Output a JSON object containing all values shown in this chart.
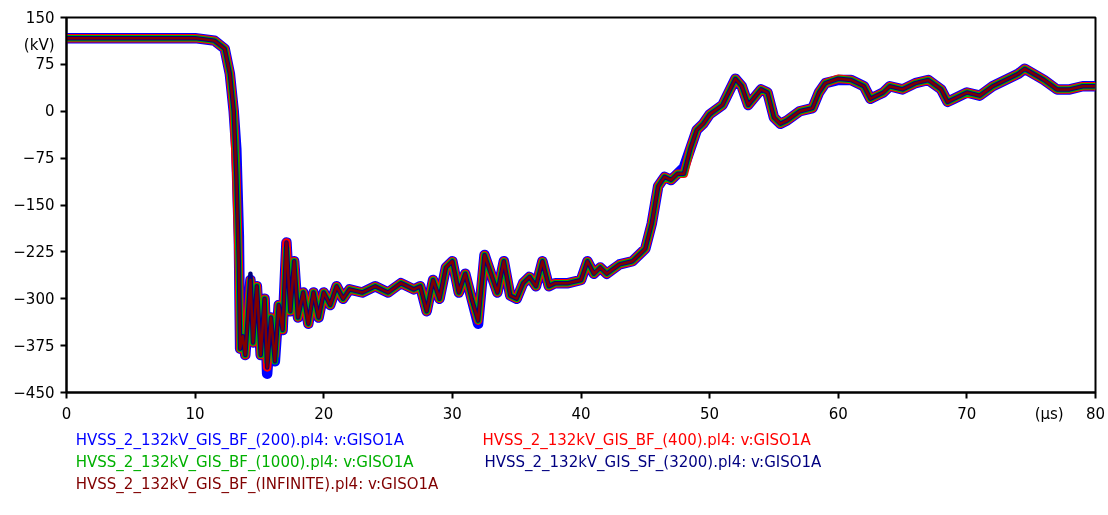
{
  "chart_data": {
    "type": "line",
    "xlabel": "(μs)",
    "ylabel": "(kV)",
    "xlim": [
      0,
      80
    ],
    "ylim": [
      -450,
      150
    ],
    "xticks": [
      0,
      10,
      20,
      30,
      40,
      50,
      60,
      70,
      80
    ],
    "yticks": [
      150,
      75,
      0,
      -75,
      -150,
      -225,
      -300,
      -375,
      -450
    ],
    "grid": false,
    "legend": "bottom",
    "line_style": "solid",
    "marker": "none",
    "x": [
      0,
      10,
      11.5,
      12.3,
      12.7,
      13,
      13.2,
      13.4,
      13.5,
      13.7,
      13.9,
      14.1,
      14.3,
      14.5,
      14.8,
      15.1,
      15.4,
      15.6,
      15.9,
      16.2,
      16.5,
      16.8,
      17.1,
      17.4,
      17.7,
      18,
      18.4,
      18.8,
      19.2,
      19.6,
      20,
      20.5,
      21,
      21.5,
      22,
      23,
      24,
      25,
      26,
      27,
      27.5,
      28,
      28.5,
      29,
      29.5,
      30,
      30.5,
      31,
      31.5,
      32,
      32.5,
      33,
      33.5,
      34,
      34.5,
      35,
      35.5,
      36,
      36.5,
      37,
      37.5,
      38,
      39,
      40,
      40.5,
      41,
      41.5,
      42,
      43,
      44,
      45,
      45.5,
      46,
      46.5,
      47,
      47.5,
      48,
      48.5,
      49,
      49.5,
      50,
      51,
      52,
      52.5,
      53,
      54,
      54.5,
      55,
      55.5,
      56,
      57,
      58,
      58.5,
      59,
      60,
      61,
      62,
      62.5,
      63,
      63.5,
      64,
      65,
      66,
      67,
      68,
      68.5,
      69,
      70,
      71,
      72,
      73,
      74,
      74.5,
      75,
      76,
      77,
      78,
      79,
      80
    ],
    "series": [
      {
        "name": "HVSS_2_132kV_GIS_BF_(200).pl4: v:GISO1A",
        "color": "#0000ff",
        "values": [
          117,
          117,
          113,
          100,
          60,
          0,
          -60,
          -200,
          -380,
          -360,
          -390,
          -330,
          -270,
          -370,
          -280,
          -390,
          -300,
          -420,
          -330,
          -400,
          -310,
          -350,
          -210,
          -320,
          -240,
          -330,
          -290,
          -340,
          -290,
          -330,
          -290,
          -310,
          -280,
          -300,
          -285,
          -290,
          -280,
          -290,
          -275,
          -285,
          -280,
          -320,
          -270,
          -300,
          -250,
          -240,
          -290,
          -260,
          -300,
          -340,
          -230,
          -260,
          -290,
          -240,
          -295,
          -300,
          -275,
          -265,
          -280,
          -240,
          -280,
          -275,
          -275,
          -270,
          -240,
          -260,
          -250,
          -260,
          -245,
          -240,
          -220,
          -180,
          -120,
          -105,
          -110,
          -100,
          -90,
          -60,
          -30,
          -20,
          -5,
          10,
          52,
          40,
          10,
          35,
          30,
          -10,
          -20,
          -15,
          0,
          5,
          30,
          45,
          50,
          50,
          40,
          20,
          25,
          30,
          40,
          35,
          45,
          50,
          35,
          15,
          20,
          30,
          25,
          40,
          50,
          60,
          68,
          62,
          50,
          35,
          35,
          40,
          40
        ]
      },
      {
        "name": "HVSS_2_132kV_GIS_BF_(400).pl4: v:GISO1A",
        "color": "#ff0000",
        "values": [
          117,
          117,
          113,
          100,
          60,
          0,
          -100,
          -250,
          -380,
          -360,
          -390,
          -330,
          -270,
          -370,
          -280,
          -390,
          -300,
          -410,
          -330,
          -390,
          -310,
          -350,
          -210,
          -320,
          -240,
          -330,
          -290,
          -340,
          -290,
          -330,
          -290,
          -310,
          -280,
          -300,
          -285,
          -290,
          -280,
          -290,
          -275,
          -285,
          -280,
          -320,
          -270,
          -300,
          -250,
          -240,
          -290,
          -260,
          -300,
          -335,
          -230,
          -260,
          -290,
          -240,
          -295,
          -300,
          -275,
          -265,
          -280,
          -240,
          -280,
          -275,
          -275,
          -270,
          -240,
          -260,
          -250,
          -260,
          -245,
          -240,
          -220,
          -180,
          -120,
          -105,
          -110,
          -100,
          -100,
          -60,
          -30,
          -20,
          -5,
          10,
          52,
          40,
          10,
          35,
          30,
          -10,
          -20,
          -15,
          0,
          5,
          30,
          45,
          52,
          50,
          40,
          20,
          25,
          30,
          40,
          35,
          45,
          50,
          35,
          15,
          20,
          30,
          25,
          40,
          50,
          60,
          68,
          62,
          50,
          35,
          35,
          40,
          40
        ]
      },
      {
        "name": "HVSS_2_132kV_GIS_BF_(1000).pl4: v:GISO1A",
        "color": "#00b000",
        "values": [
          117,
          117,
          113,
          100,
          60,
          0,
          -80,
          -250,
          -380,
          -360,
          -390,
          -330,
          -270,
          -370,
          -280,
          -390,
          -300,
          -400,
          -330,
          -400,
          -310,
          -350,
          -220,
          -320,
          -240,
          -330,
          -290,
          -340,
          -290,
          -330,
          -290,
          -310,
          -280,
          -300,
          -285,
          -290,
          -280,
          -290,
          -275,
          -285,
          -280,
          -320,
          -270,
          -300,
          -250,
          -240,
          -290,
          -260,
          -300,
          -335,
          -230,
          -260,
          -290,
          -240,
          -295,
          -300,
          -275,
          -265,
          -280,
          -240,
          -280,
          -275,
          -275,
          -270,
          -240,
          -260,
          -250,
          -260,
          -245,
          -240,
          -220,
          -180,
          -120,
          -105,
          -110,
          -100,
          -100,
          -60,
          -30,
          -20,
          -5,
          10,
          52,
          40,
          10,
          35,
          30,
          -10,
          -20,
          -15,
          0,
          5,
          30,
          45,
          52,
          50,
          40,
          20,
          25,
          30,
          40,
          35,
          45,
          50,
          35,
          15,
          20,
          30,
          25,
          40,
          50,
          60,
          68,
          62,
          50,
          35,
          35,
          40,
          40
        ]
      },
      {
        "name": "HVSS_2_132kV_GIS_SF_(3200).pl4: v:GISO1A",
        "color": "#000080",
        "values": [
          117,
          117,
          113,
          100,
          60,
          0,
          -100,
          -240,
          -380,
          -360,
          -390,
          -330,
          -260,
          -370,
          -280,
          -390,
          -300,
          -410,
          -330,
          -400,
          -310,
          -350,
          -210,
          -320,
          -240,
          -330,
          -290,
          -340,
          -290,
          -330,
          -290,
          -310,
          -280,
          -300,
          -285,
          -290,
          -280,
          -290,
          -275,
          -285,
          -280,
          -320,
          -270,
          -300,
          -250,
          -240,
          -290,
          -260,
          -300,
          -335,
          -230,
          -260,
          -290,
          -240,
          -295,
          -300,
          -275,
          -265,
          -280,
          -240,
          -280,
          -275,
          -275,
          -270,
          -240,
          -260,
          -250,
          -260,
          -245,
          -240,
          -220,
          -180,
          -120,
          -105,
          -110,
          -100,
          -100,
          -60,
          -30,
          -20,
          -5,
          10,
          52,
          40,
          10,
          35,
          30,
          -10,
          -20,
          -15,
          0,
          5,
          30,
          45,
          52,
          50,
          40,
          20,
          25,
          30,
          40,
          35,
          45,
          50,
          35,
          15,
          20,
          30,
          25,
          40,
          50,
          60,
          68,
          62,
          50,
          35,
          35,
          40,
          40
        ]
      },
      {
        "name": "HVSS_2_132kV_GIS_BF_(INFINITE).pl4: v:GISO1A",
        "color": "#800000",
        "values": [
          117,
          117,
          113,
          100,
          60,
          0,
          -100,
          -250,
          -380,
          -360,
          -390,
          -330,
          -270,
          -370,
          -280,
          -390,
          -300,
          -410,
          -330,
          -400,
          -310,
          -350,
          -210,
          -320,
          -240,
          -330,
          -290,
          -340,
          -290,
          -330,
          -290,
          -310,
          -280,
          -300,
          -285,
          -290,
          -280,
          -290,
          -275,
          -285,
          -280,
          -320,
          -270,
          -300,
          -250,
          -240,
          -290,
          -260,
          -300,
          -335,
          -230,
          -260,
          -290,
          -240,
          -295,
          -300,
          -275,
          -265,
          -280,
          -240,
          -280,
          -275,
          -275,
          -270,
          -240,
          -260,
          -250,
          -260,
          -245,
          -240,
          -220,
          -180,
          -120,
          -105,
          -110,
          -100,
          -100,
          -60,
          -30,
          -20,
          -5,
          10,
          52,
          40,
          10,
          35,
          30,
          -10,
          -20,
          -15,
          0,
          5,
          30,
          45,
          52,
          50,
          40,
          20,
          25,
          30,
          40,
          35,
          45,
          50,
          35,
          15,
          20,
          30,
          25,
          40,
          50,
          60,
          68,
          62,
          50,
          35,
          35,
          40,
          40
        ]
      }
    ]
  }
}
